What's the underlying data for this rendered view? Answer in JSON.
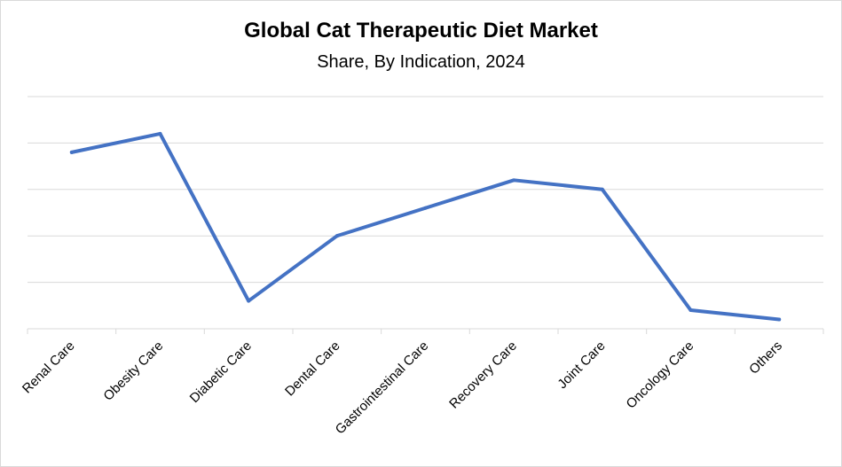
{
  "chart_data": {
    "type": "line",
    "title": "Global Cat Therapeutic Diet Market",
    "subtitle": "Share, By Indication, 2024",
    "categories": [
      "Renal Care",
      "Obesity Care",
      "Diabetic Care",
      "Dental Care",
      "Gastrointestinal Care",
      "Recovery Care",
      "Joint Care",
      "Oncology Care",
      "Others"
    ],
    "series": [
      {
        "values": [
          3.8,
          4.2,
          0.6,
          2.0,
          2.6,
          3.2,
          3.0,
          0.4,
          0.2
        ],
        "color": "#4472C4"
      }
    ],
    "ylim": [
      0,
      5
    ],
    "y_gridlines": [
      1,
      2,
      3,
      4,
      5
    ],
    "grid": true,
    "y_tick_labels_shown": false,
    "legend": "none",
    "gridline_color": "#d9d9d9"
  }
}
